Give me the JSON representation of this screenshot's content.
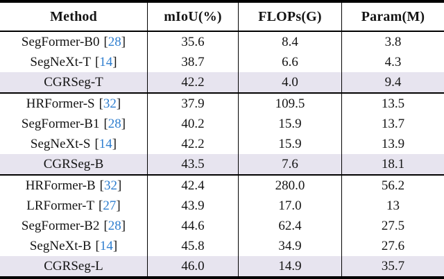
{
  "table": {
    "columns": [
      "Method",
      "mIoU(%)",
      "FLOPs(G)",
      "Param(M)"
    ],
    "colors": {
      "highlight_row_bg": "#e7e4ef",
      "citation_link": "#2e7ecf",
      "rule": "#000000"
    },
    "groups": [
      {
        "rows": [
          {
            "name": "SegFormer-B0",
            "cite_open": "[",
            "cite": "28",
            "cite_close": "]",
            "miou": "35.6",
            "flops": "8.4",
            "param": "3.8",
            "highlight": false
          },
          {
            "name": "SegNeXt-T",
            "cite_open": "[",
            "cite": "14",
            "cite_close": "]",
            "miou": "38.7",
            "flops": "6.6",
            "param": "4.3",
            "highlight": false
          },
          {
            "name": "CGRSeg-T",
            "miou": "42.2",
            "flops": "4.0",
            "param": "9.4",
            "highlight": true
          }
        ]
      },
      {
        "rows": [
          {
            "name": "HRFormer-S",
            "cite_open": "[",
            "cite": "32",
            "cite_close": "]",
            "miou": "37.9",
            "flops": "109.5",
            "param": "13.5",
            "highlight": false
          },
          {
            "name": "SegFormer-B1",
            "cite_open": "[",
            "cite": "28",
            "cite_close": "]",
            "miou": "40.2",
            "flops": "15.9",
            "param": "13.7",
            "highlight": false
          },
          {
            "name": "SegNeXt-S",
            "cite_open": "[",
            "cite": "14",
            "cite_close": "]",
            "miou": "42.2",
            "flops": "15.9",
            "param": "13.9",
            "highlight": false
          },
          {
            "name": "CGRSeg-B",
            "miou": "43.5",
            "flops": "7.6",
            "param": "18.1",
            "highlight": true
          }
        ]
      },
      {
        "rows": [
          {
            "name": "HRFormer-B",
            "cite_open": "[",
            "cite": "32",
            "cite_close": "]",
            "miou": "42.4",
            "flops": "280.0",
            "param": "56.2",
            "highlight": false
          },
          {
            "name": "LRFormer-T",
            "cite_open": "[",
            "cite": "27",
            "cite_close": "]",
            "miou": "43.9",
            "flops": "17.0",
            "param": "13",
            "highlight": false
          },
          {
            "name": "SegFormer-B2",
            "cite_open": "[",
            "cite": "28",
            "cite_close": "]",
            "miou": "44.6",
            "flops": "62.4",
            "param": "27.5",
            "highlight": false
          },
          {
            "name": "SegNeXt-B",
            "cite_open": "[",
            "cite": "14",
            "cite_close": "]",
            "miou": "45.8",
            "flops": "34.9",
            "param": "27.6",
            "highlight": false
          },
          {
            "name": "CGRSeg-L",
            "miou": "46.0",
            "flops": "14.9",
            "param": "35.7",
            "highlight": true
          }
        ]
      }
    ]
  }
}
